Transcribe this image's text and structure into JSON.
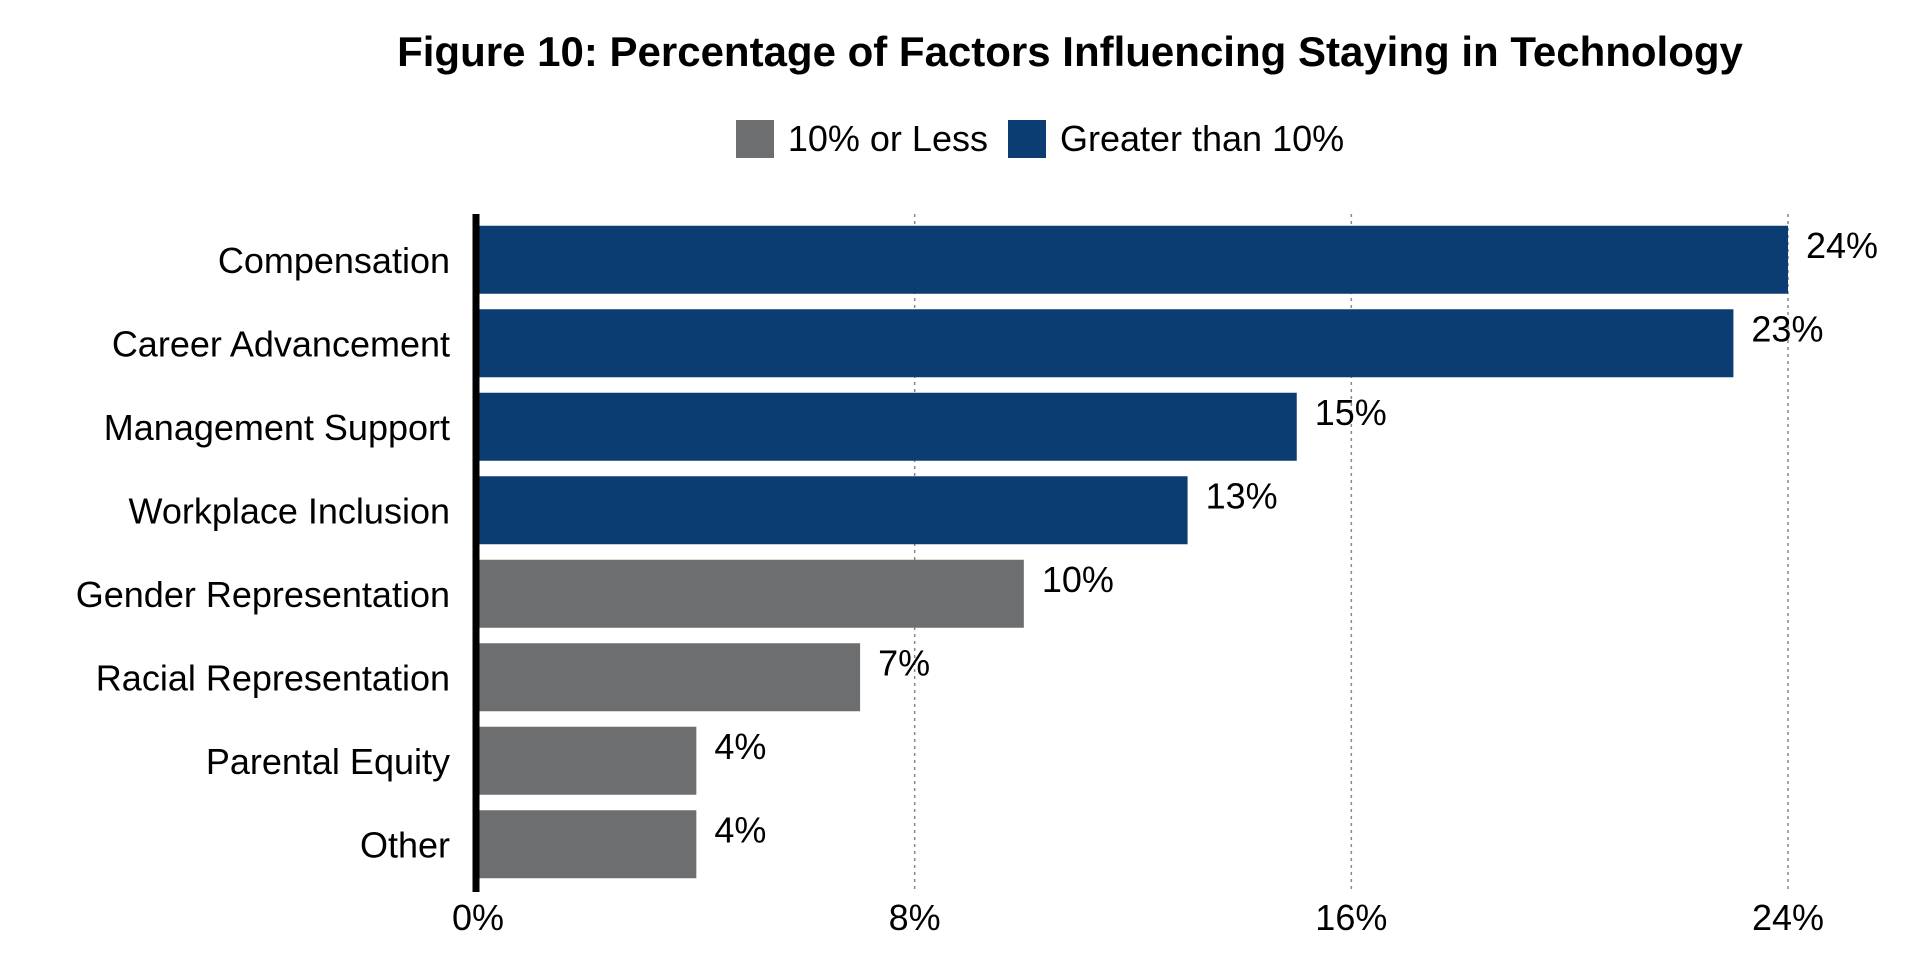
{
  "chart_data": {
    "type": "bar",
    "orientation": "horizontal",
    "title": "Figure 10: Percentage of Factors Influencing Staying in Technology",
    "categories": [
      "Compensation",
      "Career Advancement",
      "Management Support",
      "Workplace Inclusion",
      "Gender Representation",
      "Racial Representation",
      "Parental Equity",
      "Other"
    ],
    "values": [
      24,
      23,
      15,
      13,
      10,
      7,
      4,
      4
    ],
    "data_labels": [
      "24%",
      "23%",
      "15%",
      "13%",
      "10%",
      "7%",
      "4%",
      "4%"
    ],
    "xlim": [
      0,
      24
    ],
    "xticks": [
      0,
      8,
      16,
      24
    ],
    "xtick_labels": [
      "0%",
      "8%",
      "16%",
      "24%"
    ],
    "grid": "vertical dotted",
    "legend": {
      "placement": "top-center",
      "entries": [
        {
          "label": "10% or Less",
          "color": "#6d6e70"
        },
        {
          "label": "Greater than 10%",
          "color": "#0b3d73"
        }
      ]
    },
    "threshold": 10
  }
}
